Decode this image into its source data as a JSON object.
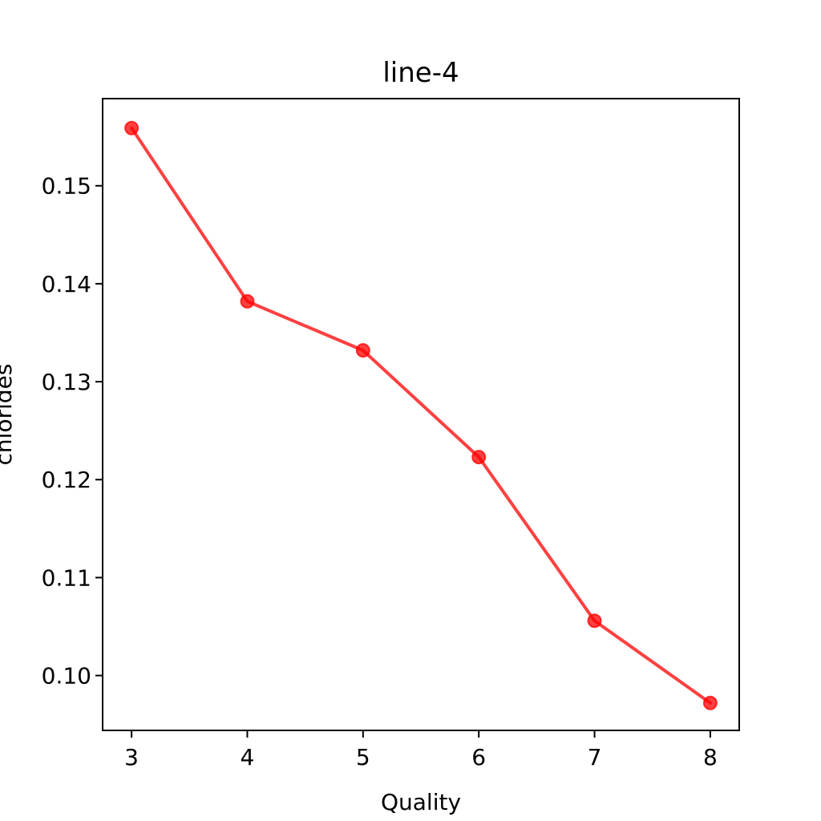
{
  "chart_data": {
    "type": "line",
    "title": "line-4",
    "xlabel": "Quality",
    "ylabel": "chlorides",
    "x": [
      3,
      4,
      5,
      6,
      7,
      8
    ],
    "series": [
      {
        "values": [
          0.1559,
          0.1382,
          0.1332,
          0.1223,
          0.1056,
          0.0972
        ],
        "color": "#ff0000",
        "marker": "circle"
      }
    ],
    "xlim": [
      2.75,
      8.25
    ],
    "ylim": [
      0.0944,
      0.1589
    ],
    "xticks": [
      3,
      4,
      5,
      6,
      7,
      8
    ],
    "xtick_labels": [
      "3",
      "4",
      "5",
      "6",
      "7",
      "8"
    ],
    "yticks": [
      0.1,
      0.11,
      0.12,
      0.13,
      0.14,
      0.15
    ],
    "ytick_labels": [
      "0.10",
      "0.11",
      "0.12",
      "0.13",
      "0.14",
      "0.15"
    ],
    "grid": false,
    "legend": "none"
  }
}
